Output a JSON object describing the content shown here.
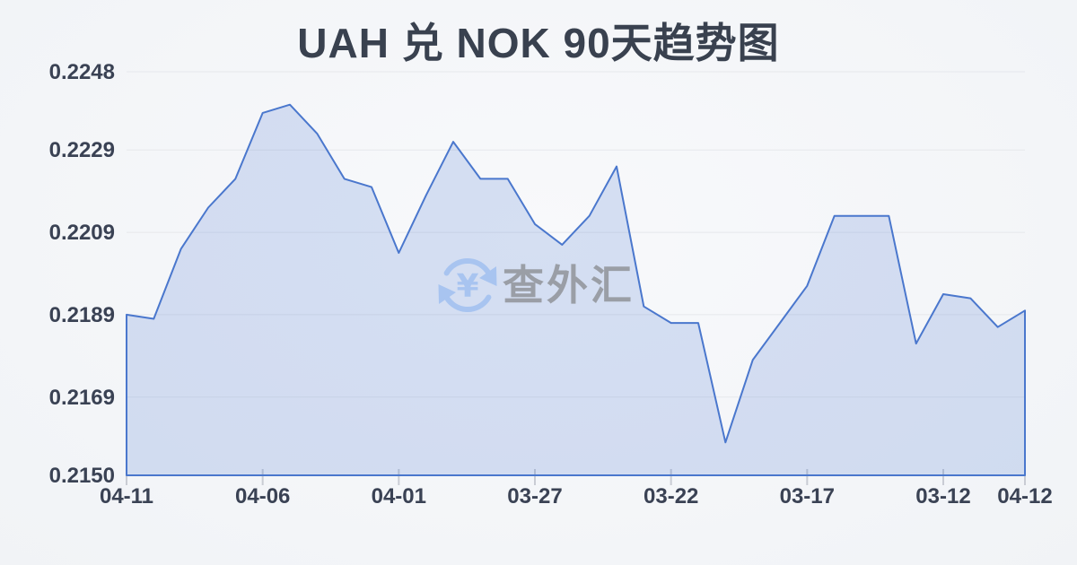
{
  "title": "UAH 兑 NOK 90天趋势图",
  "watermark": {
    "icon": "currency-exchange-circular-arrows-icon",
    "symbol": "¥",
    "text": "查外汇"
  },
  "colors": {
    "background": "#f3f5f8",
    "line": "#4a77cd",
    "fill": "rgba(77,122,208,0.20)",
    "grid": "#e6e8ec",
    "tick": "#c9ccd4",
    "text": "#3a4254",
    "watermark_icon": "#a5c2f0",
    "watermark_text": "#8e9196"
  },
  "chart_data": {
    "type": "area",
    "title": "UAH 兑 NOK 90天趋势图",
    "xlabel": "",
    "ylabel": "",
    "ylim": [
      0.215,
      0.2248
    ],
    "grid": true,
    "legend": false,
    "y_ticks": [
      {
        "label": "0.2248",
        "value": 0.2248
      },
      {
        "label": "0.2229",
        "value": 0.2229
      },
      {
        "label": "0.2209",
        "value": 0.2209
      },
      {
        "label": "0.2189",
        "value": 0.2189
      },
      {
        "label": "0.2169",
        "value": 0.2169
      },
      {
        "label": "0.2150",
        "value": 0.215
      }
    ],
    "x_ticks": [
      {
        "label": "04-11",
        "index": 0
      },
      {
        "label": "04-06",
        "index": 5
      },
      {
        "label": "04-01",
        "index": 10
      },
      {
        "label": "03-27",
        "index": 15
      },
      {
        "label": "03-22",
        "index": 20
      },
      {
        "label": "03-17",
        "index": 25
      },
      {
        "label": "03-12",
        "index": 30
      },
      {
        "label": "04-12",
        "index": 33
      }
    ],
    "values": [
      0.2189,
      0.2188,
      0.2205,
      0.2215,
      0.2222,
      0.2238,
      0.224,
      0.2233,
      0.2222,
      0.222,
      0.2204,
      0.2218,
      0.2231,
      0.2222,
      0.2222,
      0.2211,
      0.2206,
      0.2213,
      0.2225,
      0.2191,
      0.2187,
      0.2187,
      0.2158,
      0.2178,
      0.2187,
      0.2196,
      0.2213,
      0.2213,
      0.2213,
      0.2182,
      0.2194,
      0.2193,
      0.2186,
      0.219
    ]
  }
}
